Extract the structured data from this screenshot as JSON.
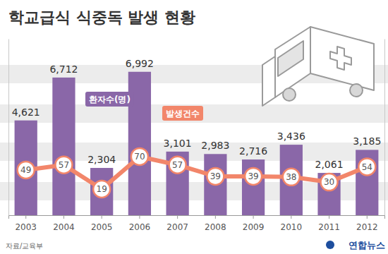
{
  "chart_data": {
    "type": "bar",
    "title": "학교급식 식중독 발생 현황",
    "source": "자료/교육부",
    "credit": "연합뉴스",
    "categories": [
      "2003",
      "2004",
      "2005",
      "2006",
      "2007",
      "2008",
      "2009",
      "2010",
      "2011",
      "2012"
    ],
    "series": [
      {
        "name": "환자수(명)",
        "type": "bar",
        "color": "#8a67a8",
        "values": [
          4621,
          6712,
          2304,
          6992,
          3101,
          2983,
          2716,
          3436,
          2061,
          3185
        ],
        "value_labels": [
          "4,621",
          "6,712",
          "2,304",
          "6,992",
          "3,101",
          "2,983",
          "2,716",
          "3,436",
          "2,061",
          "3,185"
        ]
      },
      {
        "name": "발생건수",
        "type": "line",
        "color": "#f2866a",
        "marker": "circle",
        "axis": "y2",
        "values": [
          49,
          57,
          19,
          70,
          57,
          39,
          39,
          38,
          30,
          54
        ]
      }
    ],
    "ylim": [
      0,
      8600
    ],
    "yticks": [],
    "y2lim": [
      -22,
      255
    ],
    "y2ticks": [],
    "data_labels": true,
    "tick_labels": "x",
    "legend": "top-left",
    "grid": false
  }
}
